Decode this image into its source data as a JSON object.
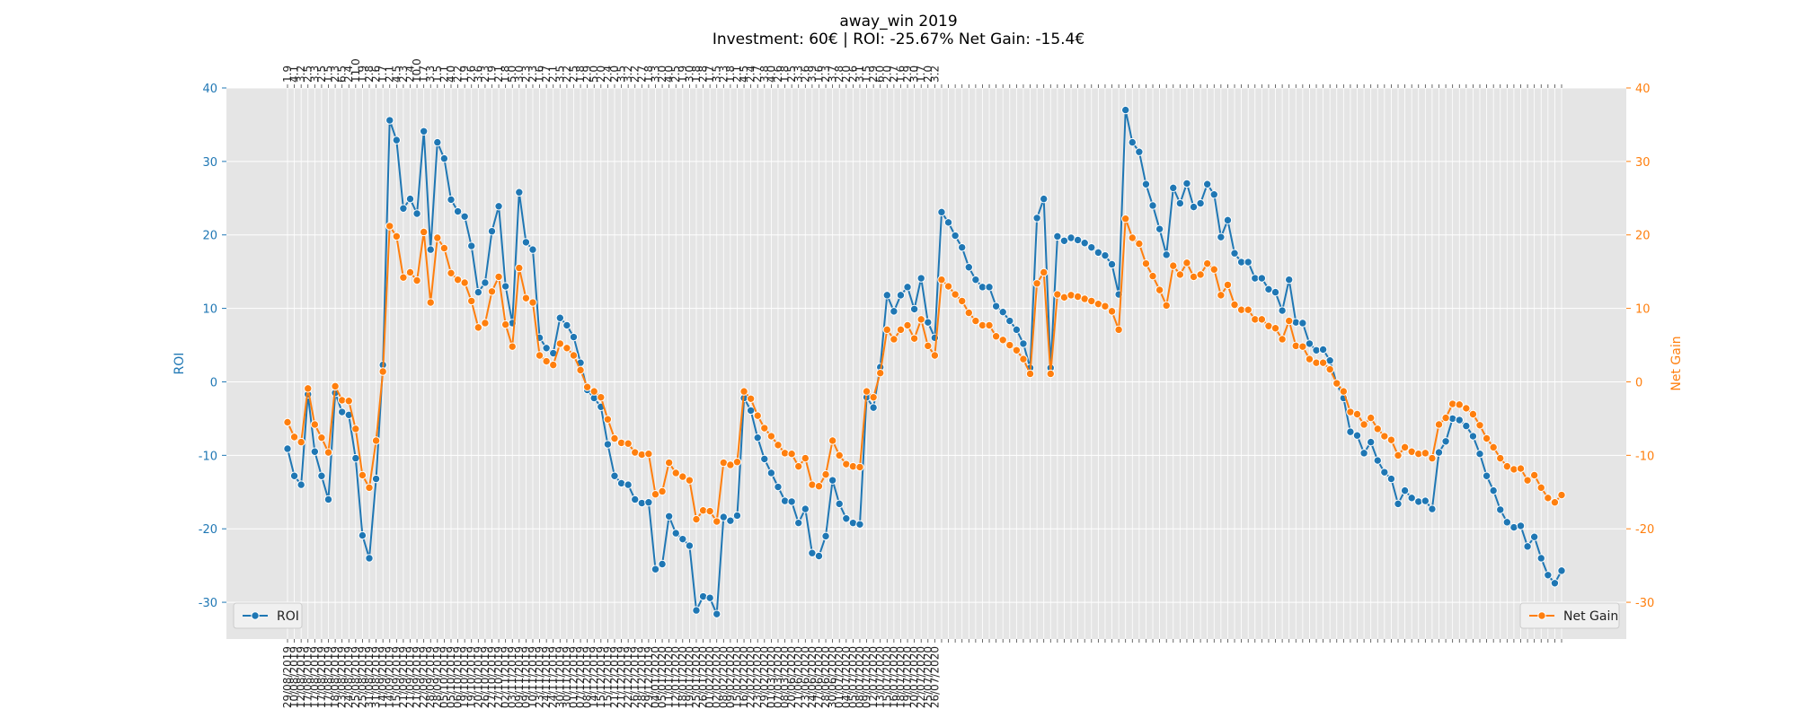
{
  "chart_data": {
    "type": "line",
    "title": "away_win 2019",
    "subtitle": "Investment: 60€ | ROI: -25.67% Net Gain: -15.4€",
    "ylabel_left": "ROI",
    "ylabel_right": "Net Gain",
    "ylim_left": [
      -35,
      40
    ],
    "ylim_right": [
      -35,
      40
    ],
    "yticks": [
      -30,
      -20,
      -10,
      0,
      10,
      20,
      30,
      40
    ],
    "grid": true,
    "background": "#e5e5e5",
    "colors": {
      "roi": "#1f77b4",
      "net_gain": "#ff7f0e"
    },
    "legend_left": {
      "label": "ROI",
      "placement": "lower-left"
    },
    "legend_right": {
      "label": "Net Gain",
      "placement": "lower-right"
    },
    "x_dates": [
      "29/08/2019",
      "10/08/2019",
      "12/08/2019",
      "17/08/2019",
      "17/08/2019",
      "17/08/2019",
      "17/08/2019",
      "18/08/2019",
      "23/08/2019",
      "24/08/2019",
      "25/08/2019",
      "25/08/2019",
      "31/08/2019",
      "31/08/2019",
      "14/09/2019",
      "14/09/2019",
      "15/09/2019",
      "21/09/2019",
      "21/09/2019",
      "21/09/2019",
      "22/09/2019",
      "28/09/2019",
      "28/09/2019",
      "05/10/2019",
      "05/10/2019",
      "06/10/2019",
      "19/10/2019",
      "19/10/2019",
      "20/10/2019",
      "26/10/2019",
      "27/10/2019",
      "27/10/2019",
      "02/11/2019",
      "03/11/2019",
      "09/11/2019",
      "09/11/2019",
      "10/11/2019",
      "23/11/2019",
      "24/11/2019",
      "24/11/2019",
      "30/11/2019",
      "30/11/2019",
      "01/12/2019",
      "07/12/2019",
      "08/12/2019",
      "14/12/2019",
      "15/12/2019",
      "15/12/2019",
      "21/12/2019",
      "21/12/2019",
      "22/12/2019",
      "26/12/2019",
      "28/12/2019",
      "29/12/2019",
      "04/01/2020",
      "05/01/2020",
      "11/01/2020",
      "12/01/2020",
      "18/01/2020",
      "19/01/2020",
      "25/01/2020",
      "26/01/2020",
      "01/02/2020",
      "02/02/2020",
      "08/02/2020",
      "09/02/2020",
      "15/02/2020",
      "16/02/2020",
      "22/02/2020",
      "23/02/2020",
      "29/02/2020",
      "01/03/2020",
      "07/03/2020",
      "08/03/2020",
      "20/06/2020",
      "21/06/2020",
      "23/06/2020",
      "24/06/2020",
      "27/06/2020",
      "28/06/2020",
      "30/06/2020",
      "01/07/2020",
      "04/07/2020",
      "05/07/2020",
      "08/07/2020",
      "09/07/2020",
      "12/07/2020",
      "13/07/2020",
      "15/07/2020",
      "16/07/2020",
      "18/07/2020",
      "19/07/2020",
      "20/07/2020",
      "22/07/2020",
      "25/07/2020",
      "26/07/2020"
    ],
    "x_odds": [
      "1.9",
      "4.1",
      "3.2",
      "2.5",
      "3.3",
      "2.5",
      "1.5",
      "2.3",
      "6.5",
      "2.4",
      "11.0",
      "1.9",
      "2.8",
      "2.6",
      "1.7",
      "2.1",
      "4.5",
      "2.3",
      "2.4",
      "10.0",
      "1.7",
      "3.3",
      "1.5",
      "2.1",
      "4.0",
      "2.2",
      "1.9",
      "2.6",
      "3.6",
      "2.3",
      "1.9",
      "2.1",
      "1.8",
      "5.0",
      "3.0",
      "2.3",
      "2.3",
      "1.6",
      "2.7",
      "2.1",
      "3.5",
      "2.2",
      "2.5",
      "1.8",
      "2.9",
      "5.0",
      "2.0",
      "2.4",
      "2.0",
      "3.5",
      "3.2",
      "2.2",
      "2.7",
      "1.8",
      "3.3",
      "2.0",
      "4.0",
      "2.5",
      "1.9",
      "3.0",
      "1.8",
      "2.8",
      "1.7",
      "3.5",
      "2.3",
      "1.8",
      "2.1",
      "4.5",
      "2.4",
      "2.7",
      "3.8",
      "4.0",
      "2.6",
      "1.8",
      "2.5",
      "3.3",
      "2.6",
      "3.9",
      "1.6",
      "2.3",
      "3.7",
      "2.8",
      "2.0",
      "2.6",
      "3.1",
      "1.5",
      "2.9",
      "6.0",
      "2.0",
      "2.7",
      "1.6",
      "2.9",
      "3.0",
      "1.7",
      "2.0",
      "3.2"
    ],
    "roi": [
      -9.1,
      -12.8,
      -14.0,
      -1.7,
      -9.5,
      -12.8,
      -16.0,
      -1.5,
      -4.1,
      -4.5,
      -10.4,
      -20.9,
      -24.0,
      -13.2,
      2.3,
      35.6,
      32.9,
      23.6,
      24.9,
      22.9,
      34.1,
      18.0,
      32.6,
      30.4,
      24.8,
      23.2,
      22.5,
      18.5,
      12.2,
      13.5,
      20.5,
      23.9,
      13.0,
      8.0,
      25.8,
      19.0,
      18.0,
      6.0,
      4.6,
      3.9,
      8.7,
      7.7,
      6.1,
      2.6,
      -1.1,
      -2.2,
      -3.4,
      -8.5,
      -12.8,
      -13.8,
      -14.0,
      -16.0,
      -16.5,
      -16.4,
      -25.5,
      -24.8,
      -18.3,
      -20.6,
      -21.4,
      -22.3,
      -31.1,
      -29.2,
      -29.4,
      -31.6,
      -18.4,
      -18.9,
      -18.2,
      -2.2,
      -3.9,
      -7.6,
      -10.5,
      -12.4,
      -14.3,
      -16.2,
      -16.3,
      -19.2,
      -17.3,
      -23.3,
      -23.7,
      -21.0,
      -13.4,
      -16.6,
      -18.6,
      -19.2,
      -19.4,
      -2.1,
      -3.5,
      2.0,
      11.8,
      9.6,
      11.8,
      12.9,
      9.9,
      14.1,
      8.1,
      6.0,
      23.1,
      21.7,
      19.9,
      18.3,
      15.6,
      13.9,
      12.9,
      12.9,
      10.3,
      9.5,
      8.3,
      7.1,
      5.2,
      1.9,
      22.3,
      24.9,
      1.9,
      19.8,
      19.2,
      19.6,
      19.3,
      18.9,
      18.3,
      17.6,
      17.2,
      16.0,
      11.9,
      37.0,
      32.6,
      31.3,
      26.9,
      24.0,
      20.8,
      17.3,
      26.4,
      24.3,
      27.0,
      23.8,
      24.3,
      26.9,
      25.5,
      19.7,
      22.0,
      17.5,
      16.3,
      16.3,
      14.1,
      14.1,
      12.6,
      12.2,
      9.7,
      13.9,
      8.1,
      8.0,
      5.2,
      4.3,
      4.4,
      2.9,
      -0.3,
      -2.2,
      -6.8,
      -7.3,
      -9.7,
      -8.2,
      -10.7,
      -12.3,
      -13.2,
      -16.6,
      -14.8,
      -15.8,
      -16.3,
      -16.2,
      -17.3,
      -9.6,
      -8.1,
      -5.0,
      -5.2,
      -6.0,
      -7.4,
      -9.8,
      -12.8,
      -14.8,
      -17.4,
      -19.1,
      -19.8,
      -19.6,
      -22.4,
      -21.1,
      -24.0,
      -26.3,
      -27.4,
      -25.7
    ],
    "net_gain": [
      -5.5,
      -7.5,
      -8.2,
      -0.9,
      -5.8,
      -7.6,
      -9.6,
      -0.6,
      -2.5,
      -2.6,
      -6.4,
      -12.7,
      -14.4,
      -8.0,
      1.4,
      21.2,
      19.8,
      14.2,
      14.9,
      13.8,
      20.4,
      10.8,
      19.6,
      18.2,
      14.8,
      13.9,
      13.5,
      11.0,
      7.4,
      8.0,
      12.3,
      14.3,
      7.8,
      4.8,
      15.5,
      11.4,
      10.8,
      3.6,
      2.8,
      2.3,
      5.2,
      4.6,
      3.6,
      1.6,
      -0.7,
      -1.3,
      -2.1,
      -5.1,
      -7.7,
      -8.3,
      -8.4,
      -9.6,
      -9.9,
      -9.8,
      -15.3,
      -14.9,
      -11.0,
      -12.4,
      -12.9,
      -13.4,
      -18.7,
      -17.5,
      -17.6,
      -19.0,
      -11.0,
      -11.3,
      -10.9,
      -1.3,
      -2.3,
      -4.6,
      -6.3,
      -7.4,
      -8.6,
      -9.7,
      -9.8,
      -11.5,
      -10.4,
      -14.0,
      -14.2,
      -12.6,
      -8.0,
      -10.0,
      -11.2,
      -11.5,
      -11.6,
      -1.3,
      -2.1,
      1.2,
      7.1,
      5.8,
      7.1,
      7.7,
      5.9,
      8.5,
      4.9,
      3.6,
      13.9,
      13.0,
      11.9,
      11.0,
      9.4,
      8.3,
      7.7,
      7.7,
      6.2,
      5.7,
      5.0,
      4.3,
      3.1,
      1.1,
      13.4,
      14.9,
      1.1,
      11.9,
      11.5,
      11.8,
      11.6,
      11.3,
      11.0,
      10.6,
      10.3,
      9.6,
      7.1,
      22.2,
      19.6,
      18.8,
      16.1,
      14.4,
      12.5,
      10.4,
      15.8,
      14.6,
      16.2,
      14.3,
      14.6,
      16.1,
      15.3,
      11.8,
      13.2,
      10.5,
      9.8,
      9.8,
      8.5,
      8.5,
      7.6,
      7.3,
      5.8,
      8.3,
      4.9,
      4.8,
      3.1,
      2.6,
      2.6,
      1.7,
      -0.2,
      -1.3,
      -4.1,
      -4.4,
      -5.8,
      -4.9,
      -6.4,
      -7.4,
      -7.9,
      -10.0,
      -8.9,
      -9.5,
      -9.8,
      -9.7,
      -10.4,
      -5.8,
      -4.9,
      -3.0,
      -3.1,
      -3.6,
      -4.4,
      -5.9,
      -7.7,
      -8.9,
      -10.4,
      -11.5,
      -11.9,
      -11.8,
      -13.4,
      -12.7,
      -14.4,
      -15.8,
      -16.4,
      -15.4
    ]
  }
}
